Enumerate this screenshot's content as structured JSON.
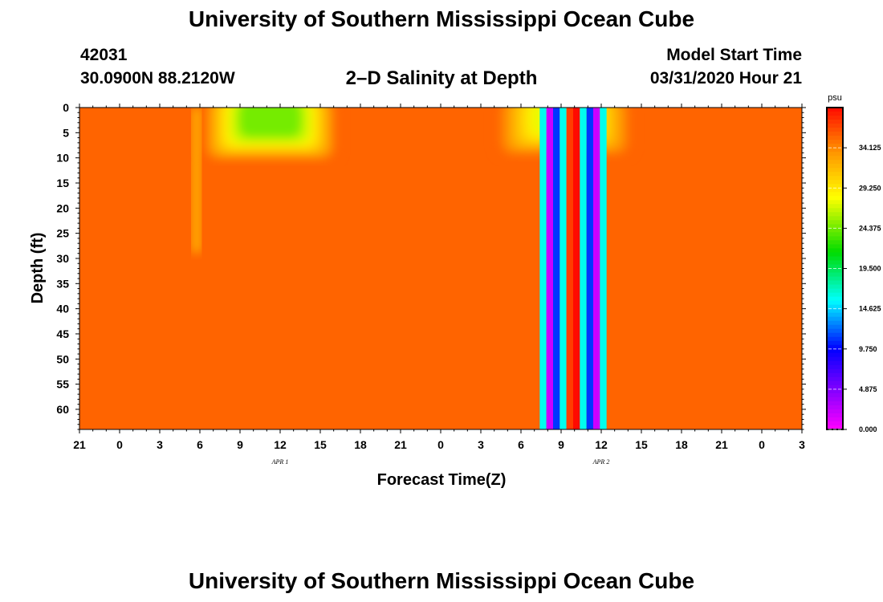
{
  "header": {
    "title": "University of Southern Mississippi Ocean Cube",
    "station_id": "42031",
    "station_coords": "30.0900N 88.2120W",
    "plot_title": "2–D Salinity at Depth",
    "start_label": "Model Start Time",
    "start_value": "03/31/2020 Hour 21"
  },
  "footer": {
    "title": "University of Southern Mississippi Ocean Cube"
  },
  "chart_data": {
    "type": "heatmap",
    "xlabel": "Forecast Time(Z)",
    "ylabel": "Depth (ft)",
    "x_range_hours": [
      0,
      54
    ],
    "x_tick_labels": [
      "21",
      "0",
      "3",
      "6",
      "9",
      "12",
      "15",
      "18",
      "21",
      "0",
      "3",
      "6",
      "9",
      "12",
      "15",
      "18",
      "21",
      "0",
      "3"
    ],
    "day_labels": [
      {
        "label": "APR 1",
        "hour": 15
      },
      {
        "label": "APR 2",
        "hour": 39
      }
    ],
    "y_range_ft": [
      0,
      64
    ],
    "y_tick_values": [
      0,
      5,
      10,
      15,
      20,
      25,
      30,
      35,
      40,
      45,
      50,
      55,
      60
    ],
    "colorbar": {
      "unit": "psu",
      "min": 0,
      "max": 39,
      "tick_labels": [
        "34.125",
        "29.250",
        "24.375",
        "19.500",
        "14.625",
        "9.750",
        "4.875",
        "0.000"
      ],
      "tick_values": [
        34.125,
        29.25,
        24.375,
        19.5,
        14.625,
        9.75,
        4.875,
        0
      ]
    },
    "background_salinity": 35.5,
    "fresh_lenses": [
      {
        "x_start": 9.0,
        "x_end": 19.5,
        "depth_max": 11,
        "min_salinity": 24.5
      },
      {
        "x_start": 31.0,
        "x_end": 41.5,
        "depth_max": 10,
        "min_salinity": 27.5
      }
    ],
    "surface_streak": {
      "x_start": 8.4,
      "x_end": 9.1,
      "salinity": 31
    },
    "bands": [
      {
        "x_start": 34.4,
        "x_end": 34.9,
        "salinity": 16
      },
      {
        "x_start": 34.9,
        "x_end": 35.4,
        "salinity": 2
      },
      {
        "x_start": 35.4,
        "x_end": 35.9,
        "salinity": 11
      },
      {
        "x_start": 35.9,
        "x_end": 36.4,
        "salinity": 16
      },
      {
        "x_start": 36.4,
        "x_end": 36.9,
        "salinity": 37
      },
      {
        "x_start": 36.9,
        "x_end": 37.4,
        "salinity": 39
      },
      {
        "x_start": 37.4,
        "x_end": 37.9,
        "salinity": 16
      },
      {
        "x_start": 37.9,
        "x_end": 38.4,
        "salinity": 11
      },
      {
        "x_start": 38.4,
        "x_end": 38.9,
        "salinity": 2
      },
      {
        "x_start": 38.9,
        "x_end": 39.4,
        "salinity": 16
      }
    ]
  }
}
